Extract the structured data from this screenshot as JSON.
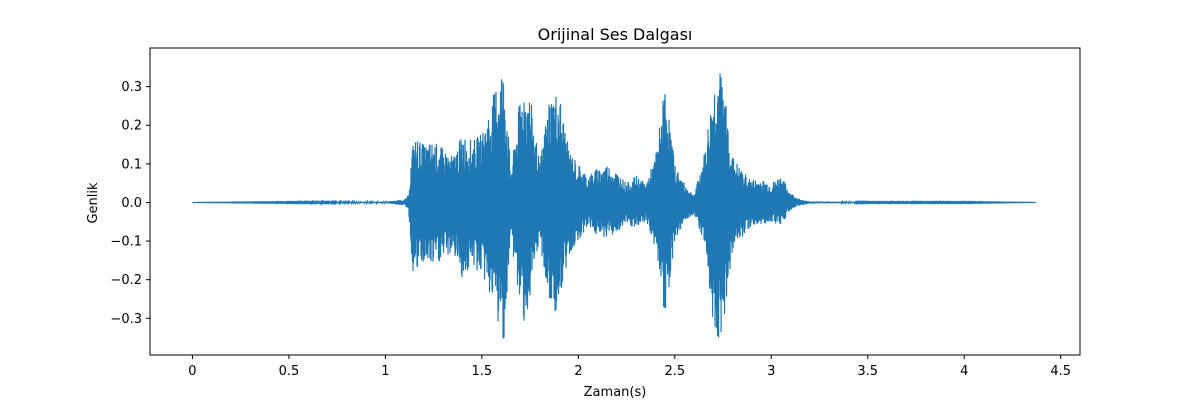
{
  "chart_data": {
    "type": "line",
    "title": "Orijinal Ses Dalgası",
    "xlabel": "Zaman(s)",
    "ylabel": "Genlik",
    "xlim": [
      -0.22,
      4.6
    ],
    "ylim": [
      -0.395,
      0.4
    ],
    "xticks": [
      0,
      0.5,
      1,
      1.5,
      2,
      2.5,
      3,
      3.5,
      4,
      4.5
    ],
    "xtick_labels": [
      "0",
      "0.5",
      "1",
      "1.5",
      "2",
      "2.5",
      "3",
      "3.5",
      "4",
      "4.5"
    ],
    "yticks": [
      0.3,
      0.2,
      0.1,
      0.0,
      -0.1,
      -0.2,
      -0.3
    ],
    "ytick_labels": [
      "0.3",
      "0.2",
      "0.1",
      "0.0",
      "−0.1",
      "−0.2",
      "−0.3"
    ],
    "grid": false,
    "color": "#1f77b4",
    "series": [
      {
        "x": [
          0.0,
          0.5,
          1.0,
          1.1,
          1.12,
          1.14,
          1.16,
          1.18,
          1.2,
          1.25,
          1.3,
          1.35,
          1.4,
          1.45,
          1.5,
          1.55,
          1.6,
          1.62,
          1.65,
          1.7,
          1.72,
          1.75,
          1.8,
          1.85,
          1.9,
          1.95,
          2.0,
          2.05,
          2.1,
          2.15,
          2.2,
          2.25,
          2.3,
          2.35,
          2.4,
          2.45,
          2.5,
          2.55,
          2.6,
          2.65,
          2.7,
          2.72,
          2.75,
          2.8,
          2.85,
          2.9,
          2.95,
          3.0,
          3.05,
          3.1,
          3.15,
          3.2,
          3.5,
          4.0,
          4.37
        ],
        "y_max": [
          0.0,
          0.001,
          0.002,
          0.008,
          0.02,
          0.15,
          0.17,
          0.16,
          0.15,
          0.16,
          0.14,
          0.12,
          0.18,
          0.16,
          0.18,
          0.26,
          0.36,
          0.33,
          0.08,
          0.28,
          0.31,
          0.28,
          0.1,
          0.28,
          0.29,
          0.14,
          0.1,
          0.07,
          0.09,
          0.1,
          0.08,
          0.05,
          0.07,
          0.05,
          0.12,
          0.31,
          0.1,
          0.05,
          0.02,
          0.12,
          0.3,
          0.36,
          0.32,
          0.12,
          0.08,
          0.06,
          0.06,
          0.05,
          0.07,
          0.025,
          0.008,
          0.003,
          0.001,
          0.001,
          0.0
        ],
        "y_min": [
          0.0,
          -0.001,
          -0.002,
          -0.008,
          -0.02,
          -0.18,
          -0.19,
          -0.17,
          -0.16,
          -0.17,
          -0.15,
          -0.13,
          -0.2,
          -0.17,
          -0.19,
          -0.25,
          -0.36,
          -0.35,
          -0.09,
          -0.29,
          -0.31,
          -0.27,
          -0.1,
          -0.28,
          -0.29,
          -0.14,
          -0.1,
          -0.06,
          -0.09,
          -0.09,
          -0.08,
          -0.06,
          -0.07,
          -0.05,
          -0.12,
          -0.3,
          -0.1,
          -0.05,
          -0.03,
          -0.1,
          -0.32,
          -0.36,
          -0.33,
          -0.12,
          -0.09,
          -0.06,
          -0.06,
          -0.05,
          -0.06,
          -0.02,
          -0.008,
          -0.003,
          -0.001,
          -0.001,
          0.0
        ]
      }
    ]
  }
}
